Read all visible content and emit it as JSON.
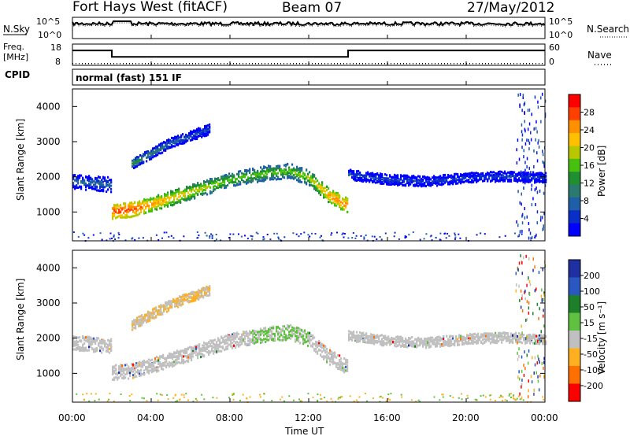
{
  "header": {
    "radar": "Fort Hays West (fitACF)",
    "beam": "Beam 07",
    "date": "27/May/2012"
  },
  "sky_panel": {
    "left_label": "N.Sky",
    "right_label": "N.Search",
    "left_ticks": [
      "10^5",
      "10^0"
    ],
    "right_ticks": [
      "10^5",
      "10^0"
    ]
  },
  "freq_panel": {
    "left_label_1": "Freq.",
    "left_label_2": "[MHz]",
    "right_label": "Nave",
    "left_ticks": [
      "18",
      "8"
    ],
    "right_ticks": [
      "60",
      "0"
    ],
    "cpid_label": "CPID"
  },
  "cpid_text": "normal (fast) 151 IF",
  "power_panel": {
    "ylabel": "Slant Range [km]",
    "yticks": [
      "4000",
      "3000",
      "2000",
      "1000"
    ],
    "colorbar_label": "Power [dB]",
    "colorbar_ticks": [
      "28",
      "24",
      "20",
      "16",
      "12",
      "8",
      "4"
    ],
    "colorbar_colors": [
      "#ff0000",
      "#ff4000",
      "#ff9000",
      "#ffc000",
      "#b8c800",
      "#48c010",
      "#1f8f2f",
      "#2a7a70",
      "#1f5fa8",
      "#0a2ec8",
      "#0000ff"
    ]
  },
  "velocity_panel": {
    "ylabel": "Slant Range [km]",
    "yticks": [
      "4000",
      "3000",
      "2000",
      "1000"
    ],
    "colorbar_label": "Velocity [m s⁻¹]",
    "colorbar_ticks": [
      "200",
      "100",
      "50",
      "15",
      "-15",
      "-50",
      "-100",
      "-200"
    ],
    "colorbar_colors": [
      "#2030a0",
      "#2a58c0",
      "#1e7f2a",
      "#60c040",
      "#c0c0c0",
      "#ffb020",
      "#ff7000",
      "#ff0000"
    ]
  },
  "xaxis": {
    "label": "Time UT",
    "ticks": [
      "00:00",
      "04:00",
      "08:00",
      "12:00",
      "16:00",
      "20:00",
      "00:00"
    ]
  },
  "chart_data": {
    "type": "heatmap",
    "x_range_hours": [
      0,
      24
    ],
    "y_range_km": [
      180,
      4500
    ],
    "power_bands": [
      {
        "name": "",
        "x": [
          0,
          1,
          2,
          2,
          3,
          4,
          6,
          8,
          10,
          11,
          12,
          13,
          14
        ],
        "range_km": [
          1900,
          1850,
          1800,
          1050,
          1100,
          1250,
          1600,
          1950,
          2150,
          2200,
          2000,
          1500,
          1200
        ],
        "power_db": [
          8,
          8,
          8,
          28,
          28,
          24,
          20,
          16,
          16,
          16,
          18,
          24,
          26
        ]
      },
      {
        "name": "",
        "x": [
          3,
          4,
          5,
          6,
          7
        ],
        "range_km": [
          2400,
          2700,
          3000,
          3200,
          3400
        ],
        "power_db": [
          12,
          10,
          8,
          6,
          6
        ]
      },
      {
        "name": "",
        "x": [
          14,
          16,
          18,
          20,
          22,
          24
        ],
        "range_km": [
          2100,
          1950,
          1900,
          2000,
          2050,
          2000
        ],
        "power_db": [
          6,
          5,
          5,
          5,
          5,
          5
        ]
      }
    ],
    "freq_mhz": {
      "x": [
        0,
        2,
        2,
        14,
        14,
        24
      ],
      "y": [
        15,
        15,
        12,
        12,
        15,
        15
      ]
    },
    "nave": {
      "x": [
        0,
        24
      ],
      "y": [
        5,
        5
      ]
    }
  }
}
